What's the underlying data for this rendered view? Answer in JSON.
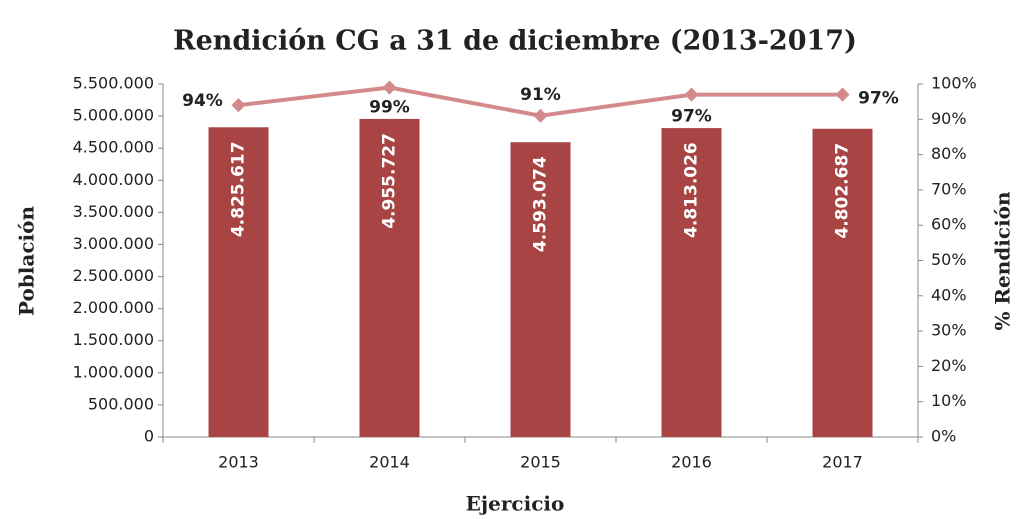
{
  "chart_data": {
    "type": "bar",
    "title": "Rendición CG a 31 de diciembre (2013-2017)",
    "xlabel": "Ejercicio",
    "ylabel": "Población",
    "y2label": "% Rendición",
    "categories": [
      "2013",
      "2014",
      "2015",
      "2016",
      "2017"
    ],
    "series": [
      {
        "name": "Población",
        "type": "bar",
        "color": "#a84444",
        "values": [
          4825617,
          4955727,
          4593074,
          4813026,
          4802687
        ],
        "value_labels": [
          "4.825.617",
          "4.955.727",
          "4.593.074",
          "4.813.026",
          "4.802.687"
        ]
      },
      {
        "name": "% Rendición",
        "type": "line",
        "axis": "y2",
        "color": "#d48a8a",
        "values": [
          94,
          99,
          91,
          97,
          97
        ],
        "value_labels": [
          "94%",
          "99%",
          "91%",
          "97%",
          "97%"
        ]
      }
    ],
    "ylim": [
      0,
      5500000
    ],
    "yticks": [
      0,
      {
        "value": 500000,
        "label": "500.000"
      },
      {
        "value": 1000000,
        "label": "1.000.000"
      },
      {
        "value": 1500000,
        "label": "1.500.000"
      },
      {
        "value": 2000000,
        "label": "2.000.000"
      },
      {
        "value": 2500000,
        "label": "2.500.000"
      },
      {
        "value": 3000000,
        "label": "3.000.000"
      },
      {
        "value": 3500000,
        "label": "3.500.000"
      },
      {
        "value": 4000000,
        "label": "4.000.000"
      },
      {
        "value": 4500000,
        "label": "4.500.000"
      },
      {
        "value": 5000000,
        "label": "5.000.000"
      },
      {
        "value": 5500000,
        "label": "5.500.000"
      }
    ],
    "y2lim": [
      0,
      100
    ],
    "y2ticks": [
      {
        "value": 0,
        "label": "0%"
      },
      {
        "value": 10,
        "label": "10%"
      },
      {
        "value": 20,
        "label": "20%"
      },
      {
        "value": 30,
        "label": "30%"
      },
      {
        "value": 40,
        "label": "40%"
      },
      {
        "value": 50,
        "label": "50%"
      },
      {
        "value": 60,
        "label": "60%"
      },
      {
        "value": 70,
        "label": "70%"
      },
      {
        "value": 80,
        "label": "80%"
      },
      {
        "value": 90,
        "label": "90%"
      },
      {
        "value": 100,
        "label": "100%"
      }
    ]
  }
}
